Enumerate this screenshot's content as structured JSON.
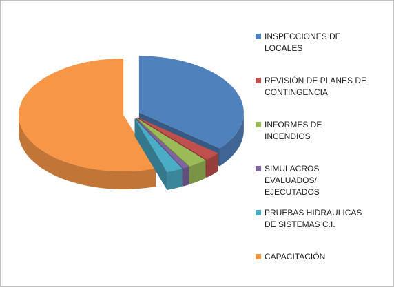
{
  "chart_data": {
    "type": "pie3d",
    "categories": [
      "INSPECCIONES DE LOCALES",
      "REVISIÓN DE PLANES DE CONTINGENCIA",
      "INFORMES DE INCENDIOS",
      "SIMULACROS EVALUADOS/ EJECUTADOS",
      "PRUEBAS HIDRAULICAS DE SISTEMAS C.I.",
      "CAPACITACIÓN"
    ],
    "values": [
      36,
      2.5,
      3,
      1,
      2.5,
      55
    ],
    "colors": [
      "#4f81bd",
      "#c0504d",
      "#9bbb59",
      "#8064a2",
      "#4bacc6",
      "#f79646"
    ],
    "legend": "right"
  }
}
